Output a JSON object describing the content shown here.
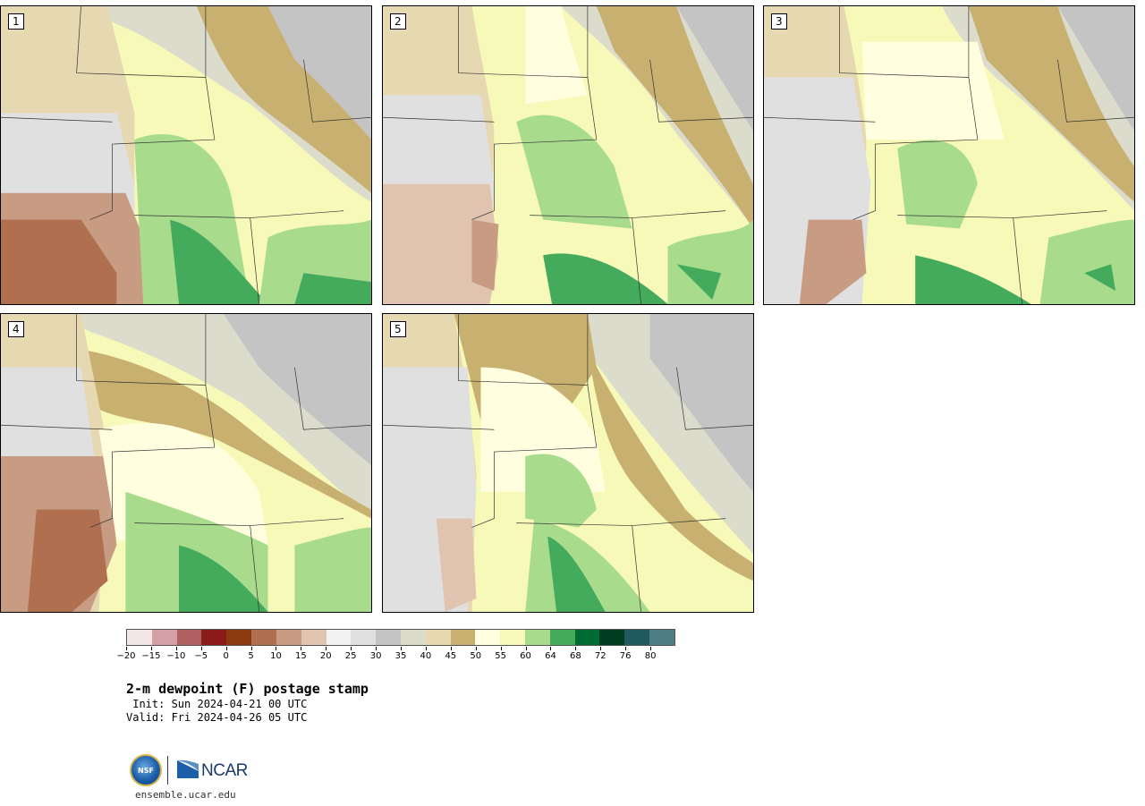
{
  "panels": [
    {
      "label": "1"
    },
    {
      "label": "2"
    },
    {
      "label": "3"
    },
    {
      "label": "4"
    },
    {
      "label": "5"
    }
  ],
  "colorbar": {
    "colors": [
      "#f3e6e6",
      "#d4a0a5",
      "#b06060",
      "#8b1a1a",
      "#8b3a10",
      "#b07050",
      "#c89c82",
      "#e0c4b0",
      "#f2f2f2",
      "#e0e0e0",
      "#c4c4c4",
      "#dcdccc",
      "#e6d8b0",
      "#c8b070",
      "#ffffe0",
      "#f7f9b8",
      "#a8dc8c",
      "#44aa5c",
      "#006a33",
      "#003c20",
      "#1e5a5e",
      "#4e7e84"
    ],
    "tick_labels": [
      "−20",
      "−15",
      "−10",
      "−5",
      "0",
      "5",
      "10",
      "15",
      "20",
      "25",
      "30",
      "35",
      "40",
      "45",
      "50",
      "55",
      "60",
      "64",
      "68",
      "72",
      "76",
      "80"
    ]
  },
  "title": "2-m dewpoint (F) postage stamp",
  "init": " Init: Sun 2024-04-21 00 UTC",
  "valid": "Valid: Fri 2024-04-26 05 UTC",
  "logos": {
    "nsf": "NSF",
    "ncar": "NCAR"
  },
  "site": "ensemble.ucar.edu"
}
